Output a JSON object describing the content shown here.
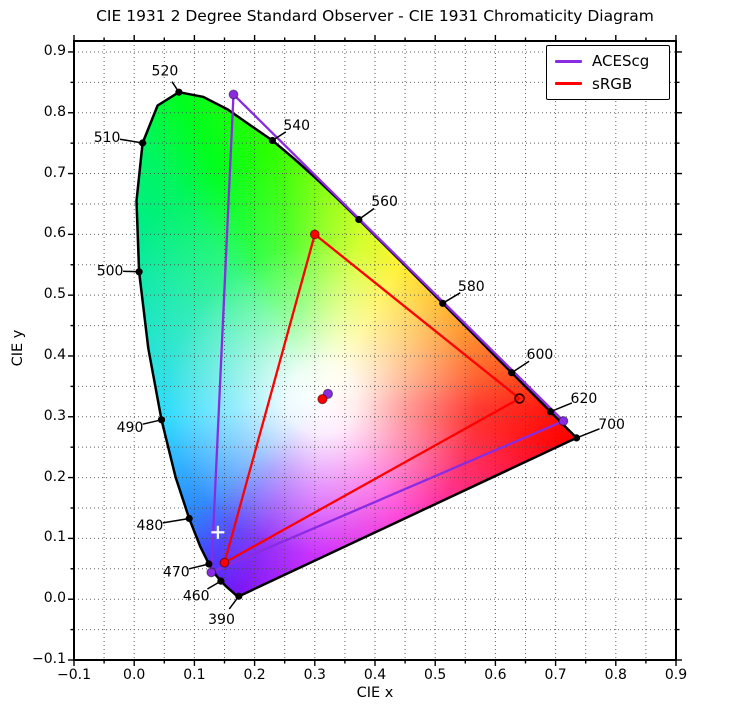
{
  "chart_data": {
    "type": "scatter",
    "title": "CIE 1931 2 Degree Standard Observer - CIE 1931 Chromaticity Diagram",
    "xlabel": "CIE x",
    "ylabel": "CIE y",
    "xlim": [
      -0.1,
      0.9
    ],
    "ylim": [
      -0.1,
      0.9
    ],
    "xticks": [
      "−0.1",
      "0.0",
      "0.1",
      "0.2",
      "0.3",
      "0.4",
      "0.5",
      "0.6",
      "0.7",
      "0.8",
      "0.9"
    ],
    "yticks": [
      "−0.1",
      "0.0",
      "0.1",
      "0.2",
      "0.3",
      "0.4",
      "0.5",
      "0.6",
      "0.7",
      "0.8",
      "0.9"
    ],
    "grid": {
      "step": 0.05,
      "style": "dotted",
      "color": "#444444"
    },
    "legend_position": "upper right",
    "series": [
      {
        "name": "ACEScg",
        "color": "#8a2be2",
        "primaries": {
          "R": [
            0.713,
            0.293
          ],
          "G": [
            0.165,
            0.83
          ],
          "B": [
            0.128,
            0.044
          ]
        },
        "whitepoint": [
          0.32168,
          0.33767
        ]
      },
      {
        "name": "sRGB",
        "color": "#ff0000",
        "r_marker_open": true,
        "primaries": {
          "R": [
            0.64,
            0.33
          ],
          "G": [
            0.3,
            0.6
          ],
          "B": [
            0.15,
            0.06
          ]
        },
        "whitepoint": [
          0.3127,
          0.329
        ]
      }
    ],
    "annotations": [
      {
        "type": "cross",
        "x": 0.139,
        "y": 0.11,
        "color": "#ffffff"
      }
    ],
    "wavelength_labels": [
      {
        "wl": "390",
        "x": 0.1738,
        "y": 0.0049,
        "lx": 0.145,
        "ly": -0.033
      },
      {
        "wl": "460",
        "x": 0.144,
        "y": 0.0297,
        "lx": 0.103,
        "ly": 0.006
      },
      {
        "wl": "470",
        "x": 0.1241,
        "y": 0.0578,
        "lx": 0.07,
        "ly": 0.045
      },
      {
        "wl": "480",
        "x": 0.0913,
        "y": 0.1327,
        "lx": 0.026,
        "ly": 0.122
      },
      {
        "wl": "490",
        "x": 0.0454,
        "y": 0.295,
        "lx": -0.007,
        "ly": 0.283
      },
      {
        "wl": "500",
        "x": 0.0082,
        "y": 0.5384,
        "lx": -0.04,
        "ly": 0.54
      },
      {
        "wl": "510",
        "x": 0.0139,
        "y": 0.7502,
        "lx": -0.045,
        "ly": 0.76
      },
      {
        "wl": "520",
        "x": 0.0743,
        "y": 0.8338,
        "lx": 0.051,
        "ly": 0.869
      },
      {
        "wl": "540",
        "x": 0.2296,
        "y": 0.7543,
        "lx": 0.27,
        "ly": 0.78
      },
      {
        "wl": "560",
        "x": 0.3731,
        "y": 0.6245,
        "lx": 0.416,
        "ly": 0.655
      },
      {
        "wl": "580",
        "x": 0.5125,
        "y": 0.4866,
        "lx": 0.56,
        "ly": 0.515
      },
      {
        "wl": "600",
        "x": 0.627,
        "y": 0.3725,
        "lx": 0.674,
        "ly": 0.403
      },
      {
        "wl": "620",
        "x": 0.6915,
        "y": 0.3083,
        "lx": 0.747,
        "ly": 0.331
      },
      {
        "wl": "700",
        "x": 0.7347,
        "y": 0.2653,
        "lx": 0.793,
        "ly": 0.288
      }
    ],
    "spectral_locus": [
      [
        380,
        0.1741,
        0.005
      ],
      [
        390,
        0.1738,
        0.0049
      ],
      [
        400,
        0.1733,
        0.0048
      ],
      [
        410,
        0.1726,
        0.0048
      ],
      [
        420,
        0.1714,
        0.0051
      ],
      [
        425,
        0.1703,
        0.0058
      ],
      [
        430,
        0.1689,
        0.0069
      ],
      [
        435,
        0.1669,
        0.0086
      ],
      [
        440,
        0.1644,
        0.0109
      ],
      [
        445,
        0.1611,
        0.0138
      ],
      [
        450,
        0.1566,
        0.0177
      ],
      [
        455,
        0.151,
        0.0227
      ],
      [
        460,
        0.144,
        0.0297
      ],
      [
        465,
        0.1355,
        0.0399
      ],
      [
        470,
        0.1241,
        0.0578
      ],
      [
        475,
        0.1096,
        0.0868
      ],
      [
        480,
        0.0913,
        0.1327
      ],
      [
        485,
        0.0687,
        0.2007
      ],
      [
        490,
        0.0454,
        0.295
      ],
      [
        495,
        0.0235,
        0.4127
      ],
      [
        500,
        0.0082,
        0.5384
      ],
      [
        505,
        0.0039,
        0.6548
      ],
      [
        510,
        0.0139,
        0.7502
      ],
      [
        515,
        0.0389,
        0.812
      ],
      [
        520,
        0.0743,
        0.8338
      ],
      [
        525,
        0.1142,
        0.8262
      ],
      [
        530,
        0.1547,
        0.8059
      ],
      [
        535,
        0.1896,
        0.7816
      ],
      [
        540,
        0.2296,
        0.7543
      ],
      [
        545,
        0.2658,
        0.7243
      ],
      [
        550,
        0.3016,
        0.6923
      ],
      [
        555,
        0.3373,
        0.6589
      ],
      [
        560,
        0.3731,
        0.6245
      ],
      [
        565,
        0.4087,
        0.5896
      ],
      [
        570,
        0.4441,
        0.5547
      ],
      [
        575,
        0.4788,
        0.5202
      ],
      [
        580,
        0.5125,
        0.4866
      ],
      [
        585,
        0.5448,
        0.4544
      ],
      [
        590,
        0.5752,
        0.4242
      ],
      [
        595,
        0.6029,
        0.3965
      ],
      [
        600,
        0.627,
        0.3725
      ],
      [
        605,
        0.6482,
        0.3514
      ],
      [
        610,
        0.6658,
        0.334
      ],
      [
        615,
        0.6801,
        0.3197
      ],
      [
        620,
        0.6915,
        0.3083
      ],
      [
        625,
        0.7006,
        0.2993
      ],
      [
        630,
        0.7079,
        0.292
      ],
      [
        635,
        0.714,
        0.2859
      ],
      [
        640,
        0.719,
        0.2809
      ],
      [
        650,
        0.726,
        0.274
      ],
      [
        660,
        0.73,
        0.27
      ],
      [
        680,
        0.7334,
        0.2666
      ],
      [
        700,
        0.7347,
        0.2653
      ]
    ]
  }
}
